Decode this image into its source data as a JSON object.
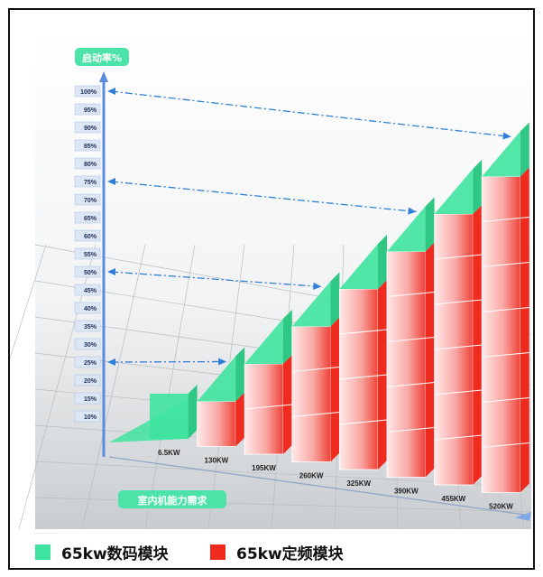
{
  "colors": {
    "digital": "#3fe39f",
    "fixed": "#ef2b20",
    "axis": "#5b8be0",
    "arrow": "#2f7fd6",
    "badge": "#4ce3a8"
  },
  "chart_data": {
    "type": "bar",
    "stacked": true,
    "ylabel": "启动率%",
    "xlabel": "室内机能力需求",
    "y_ticks": [
      "10%",
      "15%",
      "20%",
      "25%",
      "30%",
      "35%",
      "40%",
      "45%",
      "50%",
      "55%",
      "60%",
      "65%",
      "70%",
      "75%",
      "80%",
      "85%",
      "90%",
      "95%",
      "100%"
    ],
    "ylim": [
      0,
      100
    ],
    "categories": [
      "6.5KW",
      "130KW",
      "195KW",
      "260KW",
      "325KW",
      "390KW",
      "455KW",
      "520KW"
    ],
    "series": [
      {
        "name": "65kw定频模块",
        "color": "#ef2b20",
        "values": [
          0,
          12.5,
          25,
          37.5,
          50,
          62.5,
          75,
          87.5
        ]
      },
      {
        "name": "65kw数码模块",
        "color": "#3fe39f",
        "values": [
          12.5,
          12.5,
          12.5,
          12.5,
          12.5,
          12.5,
          12.5,
          12.5
        ]
      }
    ],
    "arrows_at": [
      "25%",
      "50%",
      "75%",
      "100%"
    ]
  },
  "legend": {
    "digital_label": "65kw数码模块",
    "fixed_label": "65kw定频模块"
  }
}
